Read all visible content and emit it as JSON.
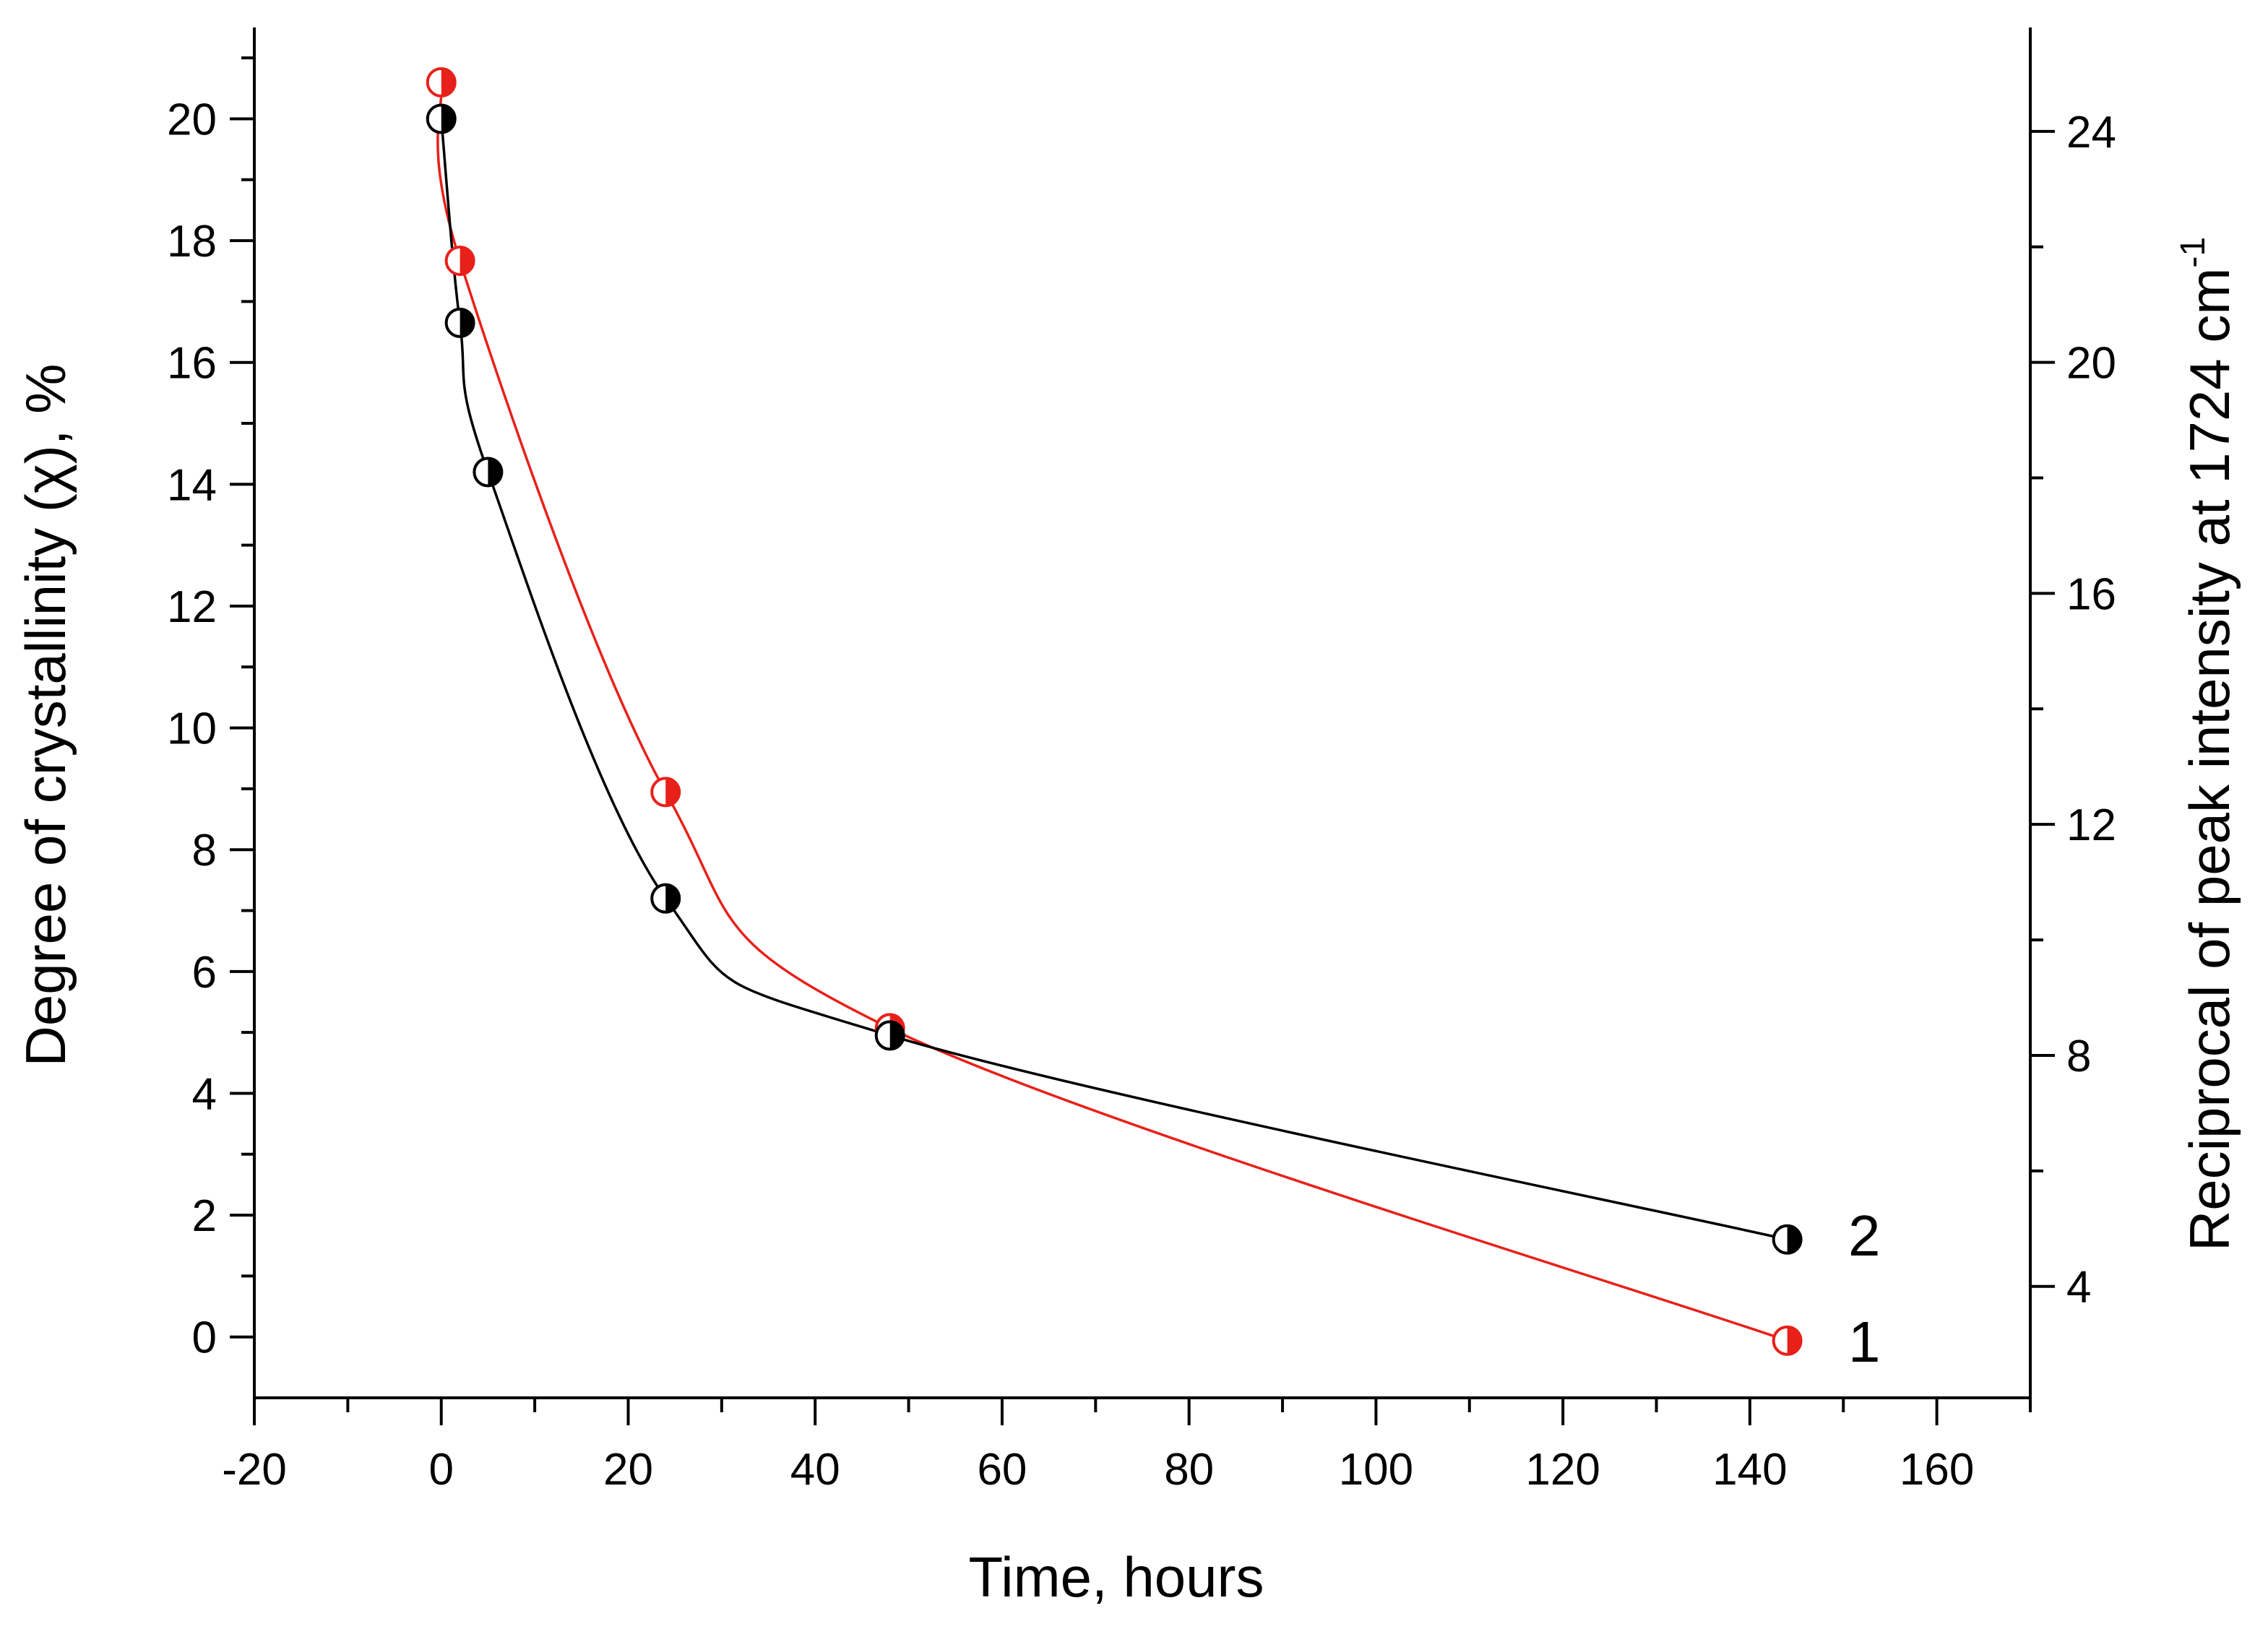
{
  "chart_data": {
    "type": "scatter",
    "title": "",
    "xlabel": "Time, hours",
    "ylabel": "Degree of crystallinity (χ), %",
    "y2label": "Reciprocal of peak intensity at 1724 cm",
    "y2label_superscript": "-1",
    "xlim": [
      -20,
      170
    ],
    "ylim": [
      -1,
      21.5
    ],
    "y2lim": [
      2.07,
      25.8
    ],
    "xticks": [
      -20,
      0,
      20,
      40,
      60,
      80,
      100,
      120,
      140,
      160
    ],
    "yticks": [
      0,
      2,
      4,
      6,
      8,
      10,
      12,
      14,
      16,
      18,
      20
    ],
    "y2ticks": [
      4,
      8,
      12,
      16,
      20,
      24
    ],
    "grid": false,
    "series": [
      {
        "name": "1",
        "axis": "right",
        "color": "#e8201a",
        "marker": "half-filled circle",
        "x": [
          0,
          2,
          24,
          48,
          144
        ],
        "y": [
          24.85,
          21.76,
          12.56,
          8.47,
          3.06
        ]
      },
      {
        "name": "2",
        "axis": "left",
        "color": "#000000",
        "marker": "half-filled circle",
        "x": [
          0,
          2,
          5,
          24,
          48,
          144
        ],
        "y": [
          20.0,
          16.65,
          14.2,
          7.2,
          4.95,
          1.6
        ]
      }
    ]
  }
}
